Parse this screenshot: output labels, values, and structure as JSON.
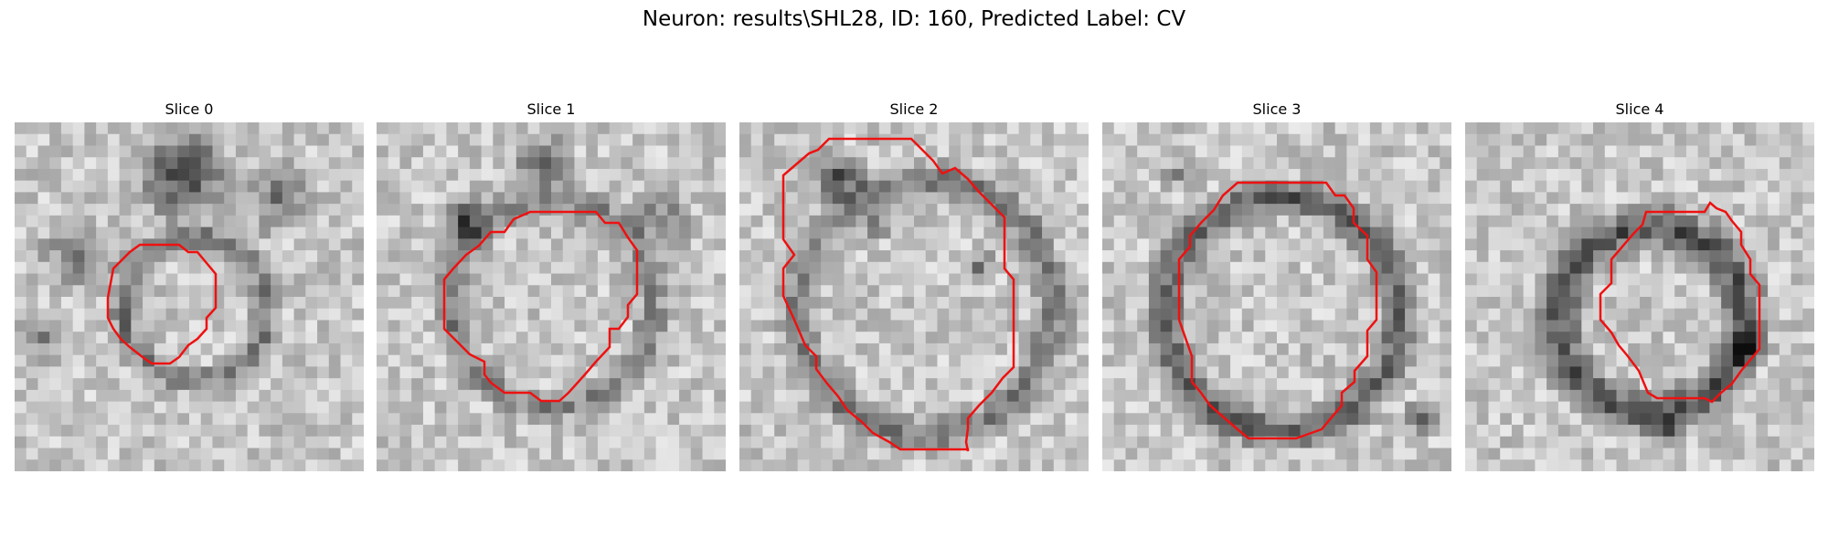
{
  "figure": {
    "title": "Neuron: results\\SHL28, ID: 160, Predicted Label: CV",
    "outline_color": "#ee1111",
    "slices": [
      {
        "title": "Slice 0"
      },
      {
        "title": "Slice 1"
      },
      {
        "title": "Slice 2"
      },
      {
        "title": "Slice 3"
      },
      {
        "title": "Slice 4"
      }
    ]
  }
}
